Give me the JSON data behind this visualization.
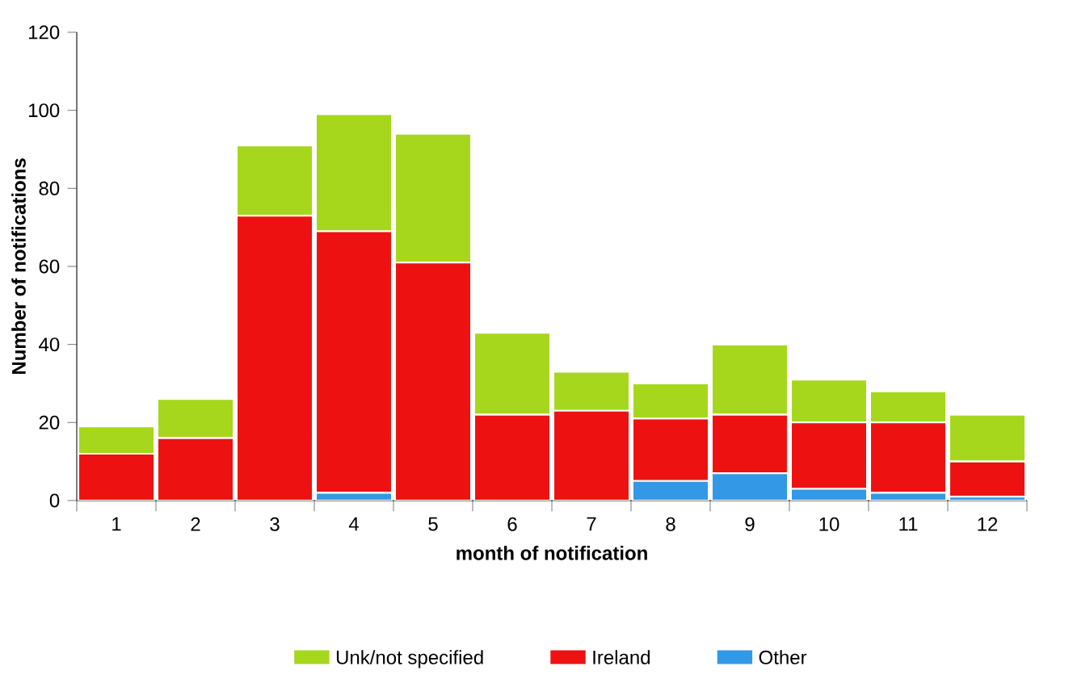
{
  "chart_data": {
    "type": "bar",
    "stacked": true,
    "xlabel": "month of notification",
    "ylabel": "Number of notifications",
    "categories": [
      "1",
      "2",
      "3",
      "4",
      "5",
      "6",
      "7",
      "8",
      "9",
      "10",
      "11",
      "12"
    ],
    "series": [
      {
        "name": "Other",
        "color": "#3399e6",
        "values": [
          0,
          0,
          0,
          2,
          0,
          0,
          0,
          5,
          7,
          3,
          2,
          1
        ]
      },
      {
        "name": "Ireland",
        "color": "#ee1111",
        "values": [
          12,
          16,
          73,
          67,
          61,
          22,
          23,
          16,
          15,
          17,
          18,
          9
        ]
      },
      {
        "name": "Unk/not specified",
        "color": "#a6d71c",
        "values": [
          7,
          10,
          18,
          30,
          33,
          21,
          10,
          9,
          18,
          11,
          8,
          12
        ]
      }
    ],
    "ylim": [
      0,
      120
    ],
    "yticks": [
      0,
      20,
      40,
      60,
      80,
      100,
      120
    ],
    "legend": "bottom"
  }
}
